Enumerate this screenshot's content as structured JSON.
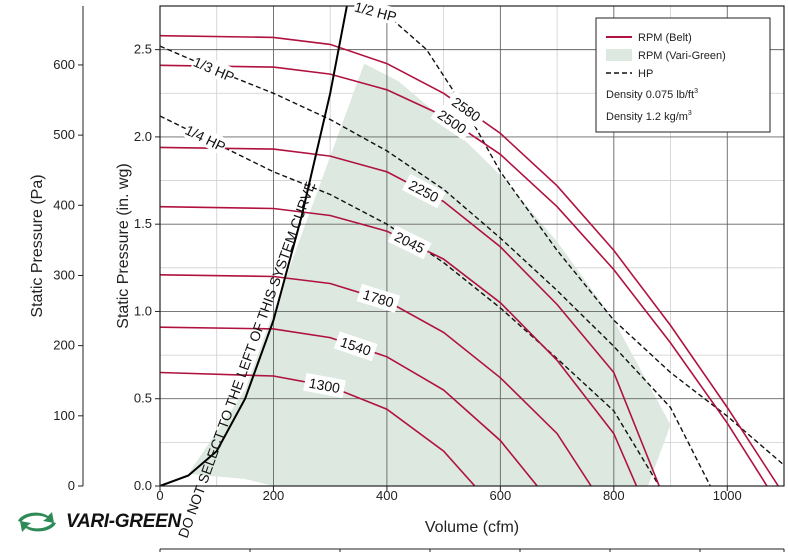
{
  "brand": {
    "name": "VARI-GREEN",
    "color": "#2e8b57"
  },
  "colors": {
    "belt": "#b0123f",
    "vari": "#dce8e0",
    "hp": "#111111",
    "system": "#000000",
    "grid": "#666666"
  },
  "chart_data": {
    "type": "line",
    "xlabel": "Volume (cfm)",
    "ylabel": "Static Pressure (in. wg)",
    "ylabel_secondary": "Static Pressure (Pa)",
    "xlim": [
      0,
      1100
    ],
    "ylim": [
      0,
      2.75
    ],
    "ylim_secondary": [
      0,
      684
    ],
    "x_ticks": [
      0,
      200,
      400,
      600,
      800,
      1000
    ],
    "x_tick_labels": [
      "0",
      "200",
      "400",
      "600",
      "800",
      "1000"
    ],
    "y_ticks": [
      0,
      0.5,
      1.0,
      1.5,
      2.0,
      2.5
    ],
    "y_tick_labels": [
      "0.0",
      "0.5",
      "1.0",
      "1.5",
      "2.0",
      "2.5"
    ],
    "y2_ticks": [
      0,
      100,
      200,
      300,
      400,
      500,
      600
    ],
    "y2_tick_labels": [
      "0",
      "100",
      "200",
      "300",
      "400",
      "500",
      "600"
    ],
    "grid": true,
    "legend": {
      "position": "top-right",
      "entries": [
        "RPM (Belt)",
        "RPM (Vari-Green)",
        "HP"
      ],
      "density_lines": [
        {
          "text": "Density 0.075 lb/ft",
          "sup": "3"
        },
        {
          "text": "Density 1.2 kg/m",
          "sup": "3"
        }
      ]
    },
    "rpm_series": [
      {
        "label": "2580",
        "points": [
          [
            0,
            2.58
          ],
          [
            200,
            2.57
          ],
          [
            300,
            2.53
          ],
          [
            400,
            2.42
          ],
          [
            500,
            2.25
          ],
          [
            600,
            2.02
          ],
          [
            700,
            1.72
          ],
          [
            800,
            1.35
          ],
          [
            900,
            0.92
          ],
          [
            1000,
            0.45
          ],
          [
            1090,
            0
          ]
        ]
      },
      {
        "label": "2500",
        "points": [
          [
            0,
            2.41
          ],
          [
            200,
            2.4
          ],
          [
            300,
            2.36
          ],
          [
            400,
            2.27
          ],
          [
            500,
            2.12
          ],
          [
            600,
            1.9
          ],
          [
            700,
            1.6
          ],
          [
            800,
            1.24
          ],
          [
            900,
            0.82
          ],
          [
            1000,
            0.36
          ],
          [
            1070,
            0
          ]
        ]
      },
      {
        "label": "2250",
        "points": [
          [
            0,
            1.94
          ],
          [
            200,
            1.93
          ],
          [
            300,
            1.89
          ],
          [
            400,
            1.8
          ],
          [
            500,
            1.63
          ],
          [
            600,
            1.37
          ],
          [
            700,
            1.04
          ],
          [
            800,
            0.65
          ],
          [
            880,
            0
          ]
        ]
      },
      {
        "label": "2045",
        "points": [
          [
            0,
            1.6
          ],
          [
            200,
            1.59
          ],
          [
            300,
            1.55
          ],
          [
            400,
            1.46
          ],
          [
            500,
            1.3
          ],
          [
            600,
            1.05
          ],
          [
            700,
            0.72
          ],
          [
            800,
            0.3
          ],
          [
            840,
            0
          ]
        ]
      },
      {
        "label": "1780",
        "points": [
          [
            0,
            1.21
          ],
          [
            200,
            1.2
          ],
          [
            300,
            1.16
          ],
          [
            400,
            1.06
          ],
          [
            500,
            0.88
          ],
          [
            600,
            0.62
          ],
          [
            700,
            0.3
          ],
          [
            760,
            0
          ]
        ]
      },
      {
        "label": "1540",
        "points": [
          [
            0,
            0.91
          ],
          [
            200,
            0.9
          ],
          [
            300,
            0.85
          ],
          [
            400,
            0.74
          ],
          [
            500,
            0.55
          ],
          [
            600,
            0.26
          ],
          [
            665,
            0
          ]
        ]
      },
      {
        "label": "1300",
        "points": [
          [
            0,
            0.65
          ],
          [
            200,
            0.63
          ],
          [
            300,
            0.57
          ],
          [
            400,
            0.44
          ],
          [
            500,
            0.2
          ],
          [
            555,
            0
          ]
        ]
      }
    ],
    "hp_series": [
      {
        "label": "1/2 HP",
        "points": [
          [
            330,
            2.76
          ],
          [
            400,
            2.7
          ],
          [
            470,
            2.5
          ],
          [
            540,
            2.15
          ],
          [
            600,
            1.8
          ],
          [
            700,
            1.35
          ],
          [
            800,
            0.95
          ],
          [
            900,
            0.65
          ],
          [
            1000,
            0.4
          ],
          [
            1100,
            0.12
          ]
        ]
      },
      {
        "label": "1/3 HP",
        "points": [
          [
            0,
            2.52
          ],
          [
            100,
            2.38
          ],
          [
            200,
            2.25
          ],
          [
            300,
            2.1
          ],
          [
            400,
            1.92
          ],
          [
            500,
            1.7
          ],
          [
            600,
            1.42
          ],
          [
            700,
            1.12
          ],
          [
            800,
            0.8
          ],
          [
            900,
            0.45
          ],
          [
            970,
            0
          ]
        ]
      },
      {
        "label": "1/4 HP",
        "points": [
          [
            0,
            2.12
          ],
          [
            100,
            1.96
          ],
          [
            200,
            1.8
          ],
          [
            300,
            1.67
          ],
          [
            400,
            1.5
          ],
          [
            500,
            1.28
          ],
          [
            600,
            1.02
          ],
          [
            700,
            0.73
          ],
          [
            800,
            0.43
          ],
          [
            880,
            0
          ]
        ]
      }
    ],
    "system_curve": {
      "label": "DO NOT SELECT TO THE LEFT OF THIS SYSTEM CURVE",
      "points": [
        [
          0,
          0
        ],
        [
          50,
          0.06
        ],
        [
          100,
          0.2
        ],
        [
          150,
          0.5
        ],
        [
          200,
          0.95
        ],
        [
          250,
          1.55
        ],
        [
          300,
          2.25
        ],
        [
          330,
          2.76
        ]
      ]
    },
    "vari_green_region": {
      "points": [
        [
          50,
          0.07
        ],
        [
          150,
          0.04
        ],
        [
          200,
          0.0
        ],
        [
          860,
          0
        ],
        [
          900,
          0.35
        ],
        [
          800,
          0.95
        ],
        [
          700,
          1.4
        ],
        [
          600,
          1.78
        ],
        [
          500,
          2.1
        ],
        [
          420,
          2.32
        ],
        [
          360,
          2.42
        ],
        [
          200,
          1.0
        ],
        [
          150,
          0.55
        ]
      ]
    }
  }
}
